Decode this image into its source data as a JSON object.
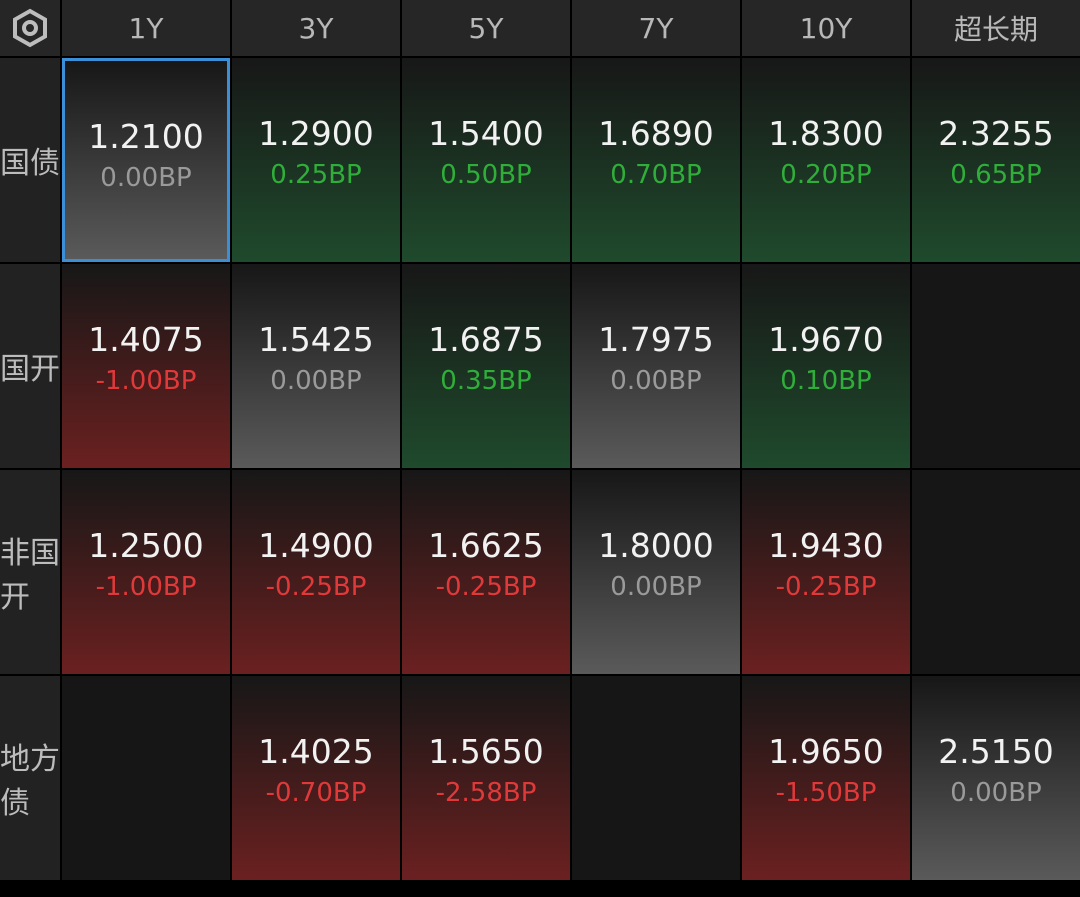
{
  "header": {
    "columns": [
      "1Y",
      "3Y",
      "5Y",
      "7Y",
      "10Y",
      "超长期"
    ]
  },
  "rows": [
    {
      "label": "国债",
      "cells": [
        {
          "value": "1.2100",
          "change": "0.00BP"
        },
        {
          "value": "1.2900",
          "change": "0.25BP"
        },
        {
          "value": "1.5400",
          "change": "0.50BP"
        },
        {
          "value": "1.6890",
          "change": "0.70BP"
        },
        {
          "value": "1.8300",
          "change": "0.20BP"
        },
        {
          "value": "2.3255",
          "change": "0.65BP"
        }
      ]
    },
    {
      "label": "国开",
      "cells": [
        {
          "value": "1.4075",
          "change": "-1.00BP"
        },
        {
          "value": "1.5425",
          "change": "0.00BP"
        },
        {
          "value": "1.6875",
          "change": "0.35BP"
        },
        {
          "value": "1.7975",
          "change": "0.00BP"
        },
        {
          "value": "1.9670",
          "change": "0.10BP"
        },
        null
      ]
    },
    {
      "label": "非国开",
      "cells": [
        {
          "value": "1.2500",
          "change": "-1.00BP"
        },
        {
          "value": "1.4900",
          "change": "-0.25BP"
        },
        {
          "value": "1.6625",
          "change": "-0.25BP"
        },
        {
          "value": "1.8000",
          "change": "0.00BP"
        },
        {
          "value": "1.9430",
          "change": "-0.25BP"
        },
        null
      ]
    },
    {
      "label": "地方债",
      "cells": [
        null,
        {
          "value": "1.4025",
          "change": "-0.70BP"
        },
        {
          "value": "1.5650",
          "change": "-2.58BP"
        },
        null,
        {
          "value": "1.9650",
          "change": "-1.50BP"
        },
        {
          "value": "2.5150",
          "change": "0.00BP"
        }
      ]
    }
  ]
}
